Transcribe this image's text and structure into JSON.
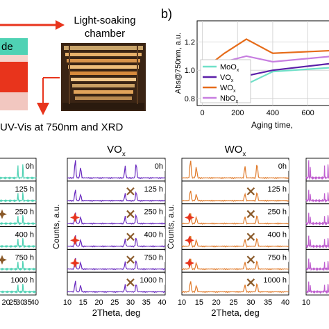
{
  "schematic": {
    "chamber_label_line1": "Light-soaking",
    "chamber_label_line2": "chamber",
    "stack_label": "de",
    "measure_label": "UV-Vis at 750nm and XRD",
    "colors": {
      "arrow": "#e8341c",
      "stack_top": "#4fd2b4",
      "stack_mid": "#e8341c",
      "stack_low": "#f2c7c0"
    }
  },
  "panel_b": {
    "label": "b)",
    "chart_data": {
      "type": "line",
      "ylabel": "Abs@750nm, a.u.",
      "xlabel": "Aging time,",
      "xlim": [
        -30,
        720
      ],
      "ylim": [
        0.75,
        1.35
      ],
      "xticks": [
        "0",
        "200",
        "400",
        "600"
      ],
      "yticks": [
        "0.8",
        "1.0",
        "1.2"
      ],
      "grid": true,
      "legend_position": "lower-left",
      "series": [
        {
          "name": "MoO",
          "sub": "x",
          "color": "#6fe0c8",
          "x": [
            0,
            125,
            250,
            400,
            750
          ],
          "y": [
            1.0,
            0.94,
            0.9,
            0.99,
            1.02
          ]
        },
        {
          "name": "VO",
          "sub": "x",
          "color": "#5b1fa8",
          "x": [
            0,
            125,
            250,
            400,
            750
          ],
          "y": [
            1.0,
            0.97,
            0.96,
            1.0,
            1.05
          ]
        },
        {
          "name": "WO",
          "sub": "x",
          "color": "#e66c1a",
          "x": [
            0,
            125,
            250,
            400,
            750
          ],
          "y": [
            1.0,
            1.12,
            1.22,
            1.12,
            1.14
          ]
        },
        {
          "name": "NbO",
          "sub": "x",
          "color": "#c77ee0",
          "x": [
            0,
            125,
            250,
            400,
            750
          ],
          "y": [
            1.0,
            1.06,
            1.1,
            1.06,
            1.1
          ]
        }
      ]
    }
  },
  "xrd": {
    "common": {
      "ylabel": "Counts, a.u.",
      "xlabel": "2Theta, deg",
      "xticks": [
        "10",
        "15",
        "20",
        "25",
        "30",
        "35",
        "40"
      ],
      "rows": [
        "0h",
        "125 h",
        "250 h",
        "400 h",
        "750 h",
        "1000 h"
      ]
    },
    "panels": [
      {
        "title": "",
        "color": "#4fd2b4",
        "ticks_visible": [
          "20",
          "25",
          "30",
          "35",
          "40"
        ]
      },
      {
        "title": "VO",
        "title_sub": "x",
        "color": "#6a2bbf"
      },
      {
        "title": "WO",
        "title_sub": "x",
        "color": "#e07a2a"
      },
      {
        "title": "",
        "color": "#c060d0",
        "ticks_visible": [
          "10",
          "1"
        ]
      }
    ],
    "markers": {
      "star_color": "#e8341c",
      "cross_color": "#8a5a2a"
    }
  }
}
